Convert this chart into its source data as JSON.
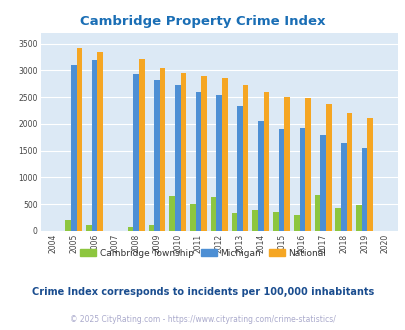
{
  "title": "Cambridge Property Crime Index",
  "title_color": "#1a6eb5",
  "years": [
    2004,
    2005,
    2006,
    2007,
    2008,
    2009,
    2010,
    2011,
    2012,
    2013,
    2014,
    2015,
    2016,
    2017,
    2018,
    2019,
    2020
  ],
  "cambridge": [
    0,
    200,
    110,
    0,
    80,
    110,
    650,
    510,
    640,
    335,
    385,
    350,
    295,
    680,
    425,
    485,
    0
  ],
  "michigan": [
    0,
    3100,
    3200,
    0,
    2930,
    2830,
    2720,
    2600,
    2540,
    2330,
    2050,
    1900,
    1930,
    1800,
    1640,
    1560,
    0
  ],
  "national": [
    0,
    3420,
    3340,
    0,
    3210,
    3040,
    2950,
    2900,
    2860,
    2730,
    2590,
    2500,
    2480,
    2380,
    2210,
    2110,
    0
  ],
  "cambridge_color": "#8dc63f",
  "michigan_color": "#4d8fd4",
  "national_color": "#f5a623",
  "bg_color": "#dce9f5",
  "ylabel_vals": [
    0,
    500,
    1000,
    1500,
    2000,
    2500,
    3000,
    3500
  ],
  "subtitle": "Crime Index corresponds to incidents per 100,000 inhabitants",
  "subtitle_color": "#1a4d8f",
  "footer": "© 2025 CityRating.com - https://www.cityrating.com/crime-statistics/",
  "footer_color": "#aaaacc",
  "legend_labels": [
    "Cambridge Township",
    "Michigan",
    "National"
  ]
}
